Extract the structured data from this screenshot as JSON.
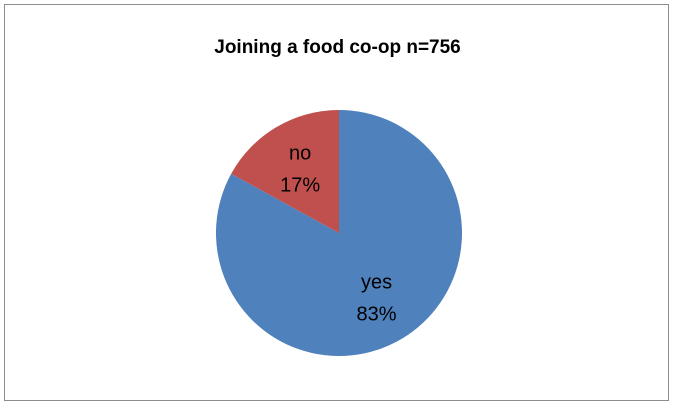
{
  "chart_data": {
    "type": "pie",
    "title": "Joining a food co-op n=756",
    "categories": [
      "yes",
      "no"
    ],
    "values": [
      83,
      17
    ],
    "value_labels": [
      "83%",
      "17%"
    ],
    "colors": [
      "#4f81bd",
      "#c0504d"
    ],
    "legend": "none",
    "start_angle_deg": 0,
    "direction": "clockwise",
    "label_position": "inside"
  }
}
